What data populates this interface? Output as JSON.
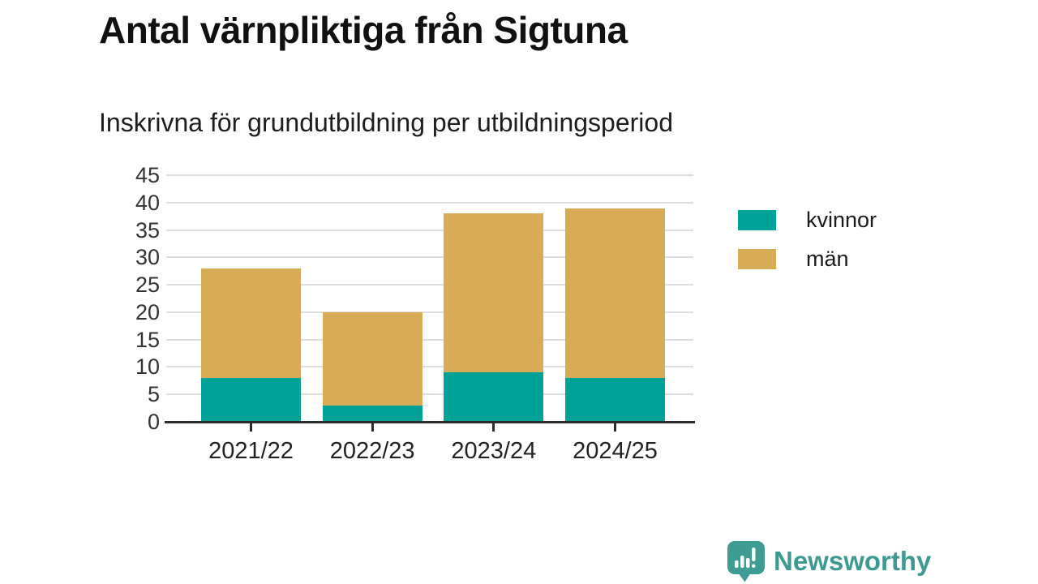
{
  "chart": {
    "title": "Antal värnpliktiga från Sigtuna",
    "subtitle": "Inskrivna för grundutbildning per utbildningsperiod"
  },
  "chart_data": {
    "type": "bar",
    "stacked": true,
    "categories": [
      "2021/22",
      "2022/23",
      "2023/24",
      "2024/25"
    ],
    "series": [
      {
        "name": "kvinnor",
        "color": "#00A298",
        "values": [
          8,
          3,
          9,
          8
        ]
      },
      {
        "name": "män",
        "color": "#D8AB57",
        "values": [
          20,
          17,
          29,
          31
        ]
      }
    ],
    "totals": [
      28,
      20,
      38,
      39
    ],
    "ylim": [
      0,
      45
    ],
    "ytick_step": 5,
    "grid": true,
    "legend_position": "right"
  },
  "branding": {
    "logo_text": "Newsworthy",
    "logo_color": "#3D9A92",
    "logo_icon": "bar-chart-speech-bubble"
  },
  "colors": {
    "axis": "#2b2b2b",
    "gridline": "#dedede",
    "title_text": "#111111",
    "tick_text": "#333333"
  }
}
